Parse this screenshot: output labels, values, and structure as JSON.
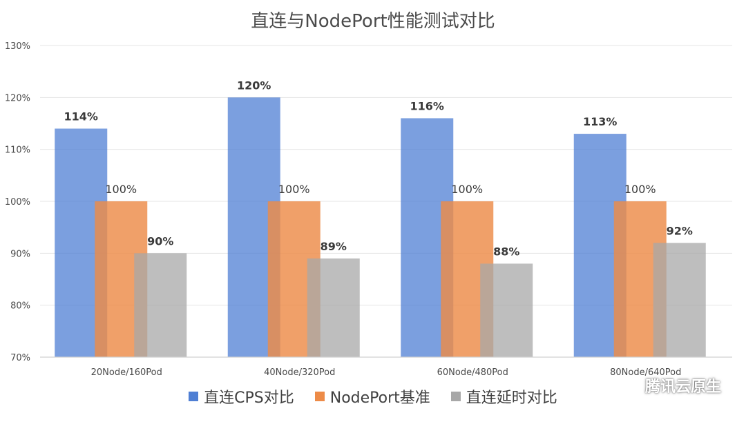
{
  "chart_data": {
    "type": "bar",
    "title": "直连与NodePort性能测试对比",
    "xlabel": "",
    "ylabel": "",
    "ylim": [
      70,
      130
    ],
    "y_ticks": [
      "70%",
      "80%",
      "90%",
      "100%",
      "110%",
      "120%",
      "130%"
    ],
    "grid": true,
    "legend_position": "bottom",
    "categories": [
      "20Node/160Pod",
      "40Node/320Pod",
      "60Node/480Pod",
      "80Node/640Pod"
    ],
    "series": [
      {
        "name": "直连CPS对比",
        "color": "#4f7fd4",
        "values": [
          114,
          120,
          116,
          113
        ],
        "labels": [
          "114%",
          "120%",
          "116%",
          "113%"
        ]
      },
      {
        "name": "NodePort基准",
        "color": "#ed8b48",
        "values": [
          100,
          100,
          100,
          100
        ],
        "labels": [
          "100%",
          "100%",
          "100%",
          "100%"
        ]
      },
      {
        "name": "直连延时对比",
        "color": "#a8a8a8",
        "values": [
          90,
          89,
          88,
          92
        ],
        "labels": [
          "90%",
          "89%",
          "88%",
          "92%"
        ]
      }
    ]
  },
  "watermark": {
    "text": "腾讯云原生",
    "icon": "wechat-icon"
  }
}
